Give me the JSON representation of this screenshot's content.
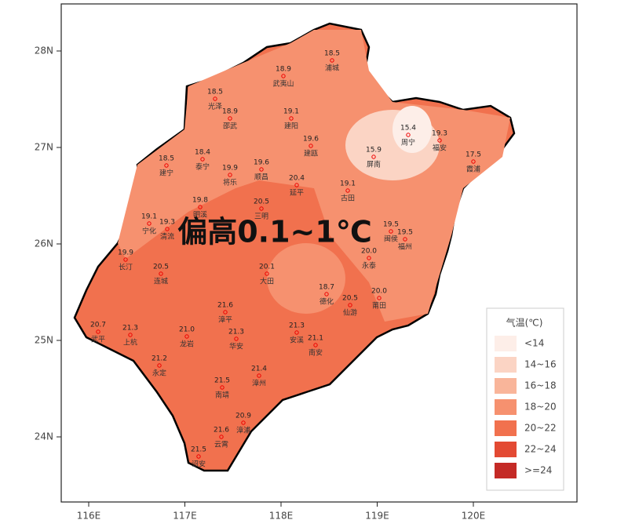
{
  "annotation": "偏高0.1~1℃",
  "axes": {
    "lat_ticks": [
      {
        "value": 28,
        "label": "28N"
      },
      {
        "value": 27,
        "label": "27N"
      },
      {
        "value": 26,
        "label": "26N"
      },
      {
        "value": 25,
        "label": "25N"
      },
      {
        "value": 24,
        "label": "24N"
      }
    ],
    "lon_ticks": [
      {
        "value": 116,
        "label": "116E"
      },
      {
        "value": 117,
        "label": "117E"
      },
      {
        "value": 118,
        "label": "118E"
      },
      {
        "value": 119,
        "label": "119E"
      },
      {
        "value": 120,
        "label": "120E"
      }
    ]
  },
  "legend": {
    "title": "气温(℃)",
    "items": [
      {
        "label": "<14",
        "color": "#fdeee8"
      },
      {
        "label": "14~16",
        "color": "#fbd4c4"
      },
      {
        "label": "16~18",
        "color": "#f9b59a"
      },
      {
        "label": "18~20",
        "color": "#f6916f"
      },
      {
        "label": "20~22",
        "color": "#f1714e"
      },
      {
        "label": "22~24",
        "color": "#e34a33"
      },
      {
        "label": ">=24",
        "color": "#c42a26"
      }
    ]
  },
  "stations": [
    {
      "value": "18.5",
      "name": "浦城"
    },
    {
      "value": "18.9",
      "name": "武夷山"
    },
    {
      "value": "18.5",
      "name": "光泽"
    },
    {
      "value": "18.9",
      "name": "邵武"
    },
    {
      "value": "19.1",
      "name": "建阳"
    },
    {
      "value": "19.6",
      "name": "建瓯"
    },
    {
      "value": "18.4",
      "name": "泰宁"
    },
    {
      "value": "18.5",
      "name": "建宁"
    },
    {
      "value": "19.9",
      "name": "将乐"
    },
    {
      "value": "19.6",
      "name": "顺昌"
    },
    {
      "value": "15.9",
      "name": "屏南"
    },
    {
      "value": "15.4",
      "name": "周宁"
    },
    {
      "value": "19.3",
      "name": "福安"
    },
    {
      "value": "17.5",
      "name": "霞浦"
    },
    {
      "value": "20.4",
      "name": "延平"
    },
    {
      "value": "19.1",
      "name": "古田"
    },
    {
      "value": "19.8",
      "name": "明溪"
    },
    {
      "value": "20.5",
      "name": "三明"
    },
    {
      "value": "19.1",
      "name": "宁化"
    },
    {
      "value": "19.3",
      "name": "清流"
    },
    {
      "value": "19.9",
      "name": "长汀"
    },
    {
      "value": "20.5",
      "name": "连城"
    },
    {
      "value": "20.1",
      "name": "大田"
    },
    {
      "value": "19.5",
      "name": "闽侯"
    },
    {
      "value": "19.5",
      "name": "福州"
    },
    {
      "value": "20.0",
      "name": "永泰"
    },
    {
      "value": "18.7",
      "name": "德化"
    },
    {
      "value": "20.5",
      "name": "仙游"
    },
    {
      "value": "20.0",
      "name": "莆田"
    },
    {
      "value": "21.6",
      "name": "漳平"
    },
    {
      "value": "20.7",
      "name": "武平"
    },
    {
      "value": "21.3",
      "name": "上杭"
    },
    {
      "value": "21.0",
      "name": "龙岩"
    },
    {
      "value": "21.3",
      "name": "华安"
    },
    {
      "value": "21.3",
      "name": "安溪"
    },
    {
      "value": "21.1",
      "name": "南安"
    },
    {
      "value": "21.2",
      "name": "永定"
    },
    {
      "value": "21.4",
      "name": "漳州"
    },
    {
      "value": "21.5",
      "name": "南靖"
    },
    {
      "value": "20.9",
      "name": "漳浦"
    },
    {
      "value": "21.6",
      "name": "云霄"
    },
    {
      "value": "21.5",
      "name": "诏安"
    }
  ]
}
